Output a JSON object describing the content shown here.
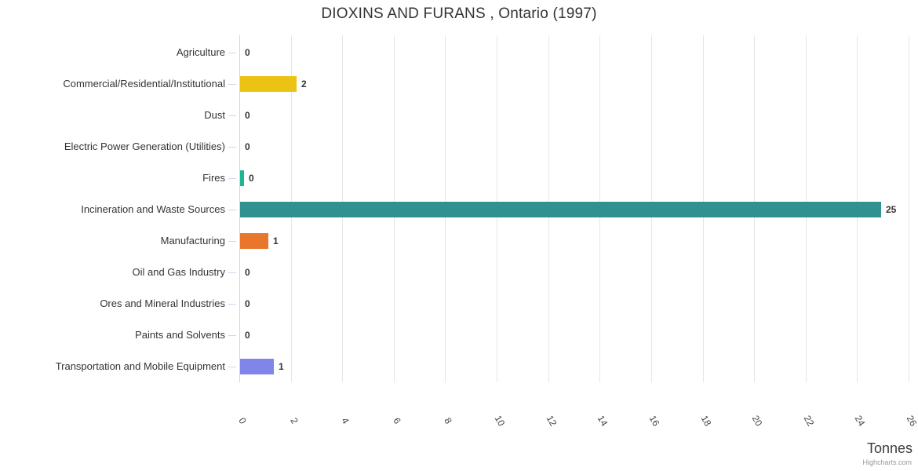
{
  "chart_data": {
    "type": "bar",
    "orientation": "horizontal",
    "title": "DIOXINS AND FURANS , Ontario (1997)",
    "xlabel": "Tonnes",
    "credit": "Highcharts.com",
    "categories": [
      "Agriculture",
      "Commercial/Residential/Institutional",
      "Dust",
      "Electric Power Generation (Utilities)",
      "Fires",
      "Incineration and Waste Sources",
      "Manufacturing",
      "Oil and Gas Industry",
      "Ores and Mineral Industries",
      "Paints and Solvents",
      "Transportation and Mobile Equipment"
    ],
    "values": [
      0,
      2,
      0,
      0,
      0,
      25,
      1,
      0,
      0,
      0,
      1
    ],
    "data_labels": [
      "0",
      "2",
      "0",
      "0",
      "0",
      "25",
      "1",
      "0",
      "0",
      "0",
      "1"
    ],
    "bar_lengths_estimated": [
      0,
      2.2,
      0,
      0,
      0.15,
      24.9,
      1.1,
      0,
      0,
      0,
      1.3
    ],
    "bar_colors": [
      null,
      "#ecc213",
      null,
      null,
      "#1db78f",
      "#2f9190",
      "#e8762c",
      null,
      null,
      null,
      "#8085e9"
    ],
    "xlim": [
      0,
      26
    ],
    "x_tick_interval": 2,
    "x_tick_labels": [
      "0",
      "2",
      "4",
      "6",
      "8",
      "10",
      "12",
      "14",
      "16",
      "18",
      "20",
      "22",
      "24",
      "26"
    ],
    "grid": true,
    "legend": false,
    "colors": {
      "title": "#333333",
      "category_label": "#333333",
      "tick_label": "#444444",
      "data_label": "#333333",
      "gridline": "#e6e6e6",
      "axis_line": "#ccd6eb",
      "background": "#ffffff"
    }
  }
}
